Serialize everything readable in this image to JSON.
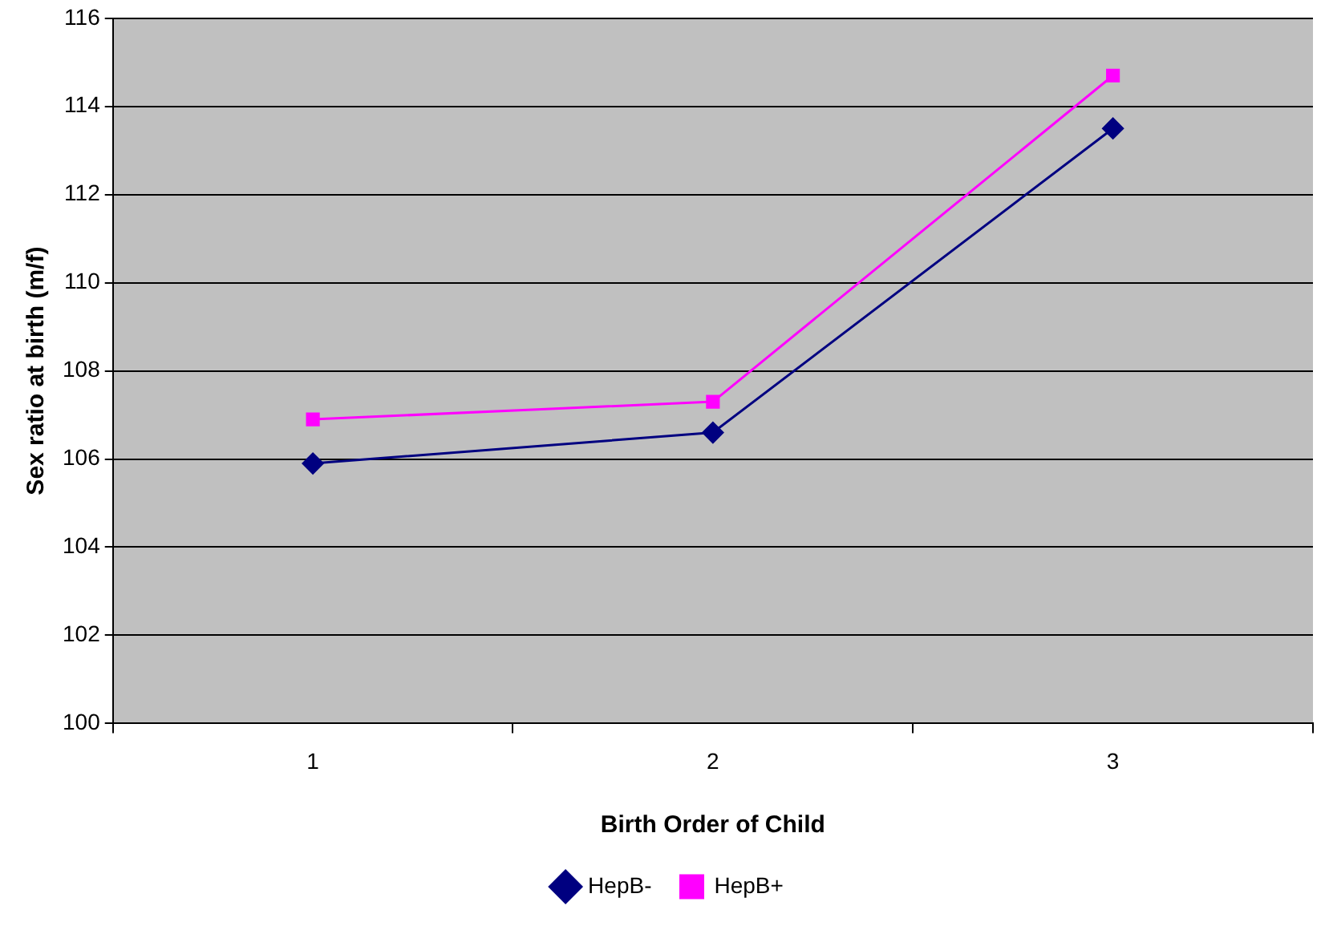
{
  "chart_data": {
    "type": "line",
    "xlabel": "Birth Order of Child",
    "ylabel": "Sex ratio at birth (m/f)",
    "categories": [
      "1",
      "2",
      "3"
    ],
    "series": [
      {
        "name": "HepB-",
        "color": "#000080",
        "values": [
          105.9,
          106.6,
          113.5
        ],
        "marker": "diamond"
      },
      {
        "name": "HepB+",
        "color": "#ff00ff",
        "values": [
          106.9,
          107.3,
          114.7
        ],
        "marker": "square"
      }
    ],
    "ylim": [
      100,
      116
    ],
    "yticks": [
      100,
      102,
      104,
      106,
      108,
      110,
      112,
      114,
      116
    ],
    "grid": "y",
    "legend": "bottom",
    "line_style": "solid"
  }
}
